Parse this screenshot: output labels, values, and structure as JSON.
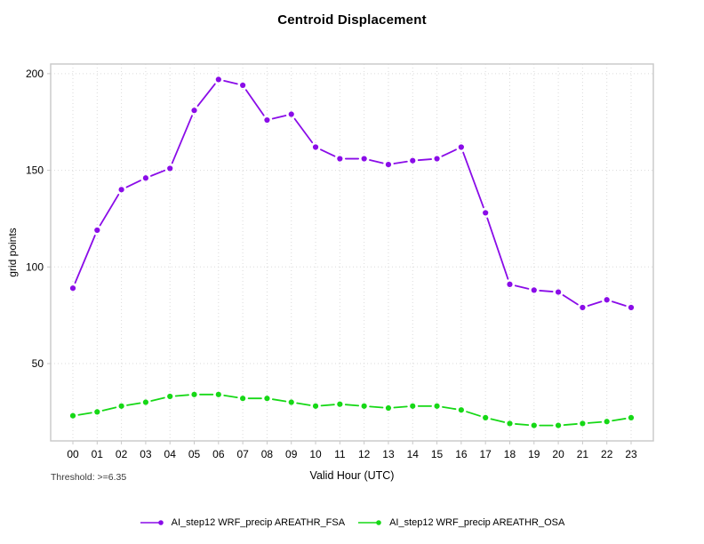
{
  "header": {
    "title": "Centroid Displacement"
  },
  "chart_data": {
    "type": "line",
    "title": "Centroid Displacement",
    "xlabel": "Valid Hour (UTC)",
    "ylabel": "grid points",
    "threshold_note": "Threshold: >=6.35",
    "categories": [
      "00",
      "01",
      "02",
      "03",
      "04",
      "05",
      "06",
      "07",
      "08",
      "09",
      "10",
      "11",
      "12",
      "13",
      "14",
      "15",
      "16",
      "17",
      "18",
      "19",
      "20",
      "21",
      "22",
      "23"
    ],
    "series": [
      {
        "name": "AI_step12 WRF_precip AREATHR_FSA",
        "color": "#8a0ce8",
        "values": [
          89,
          119,
          140,
          146,
          151,
          181,
          197,
          194,
          176,
          179,
          162,
          156,
          156,
          153,
          155,
          156,
          162,
          128,
          91,
          88,
          87,
          79,
          83,
          79
        ]
      },
      {
        "name": "AI_step12 WRF_precip AREATHR_OSA",
        "color": "#16d816",
        "values": [
          23,
          25,
          28,
          30,
          33,
          34,
          34,
          32,
          32,
          30,
          28,
          29,
          28,
          27,
          28,
          28,
          26,
          22,
          19,
          18,
          18,
          19,
          20,
          22
        ]
      }
    ],
    "yticks": [
      50,
      100,
      150,
      200
    ],
    "ylim": [
      10,
      205
    ],
    "grid": true,
    "legend_position": "bottom"
  },
  "colors": {
    "grid": "#dadada",
    "border": "#c8c8c8",
    "tick": "#c8c8c8",
    "text": "#000000"
  }
}
